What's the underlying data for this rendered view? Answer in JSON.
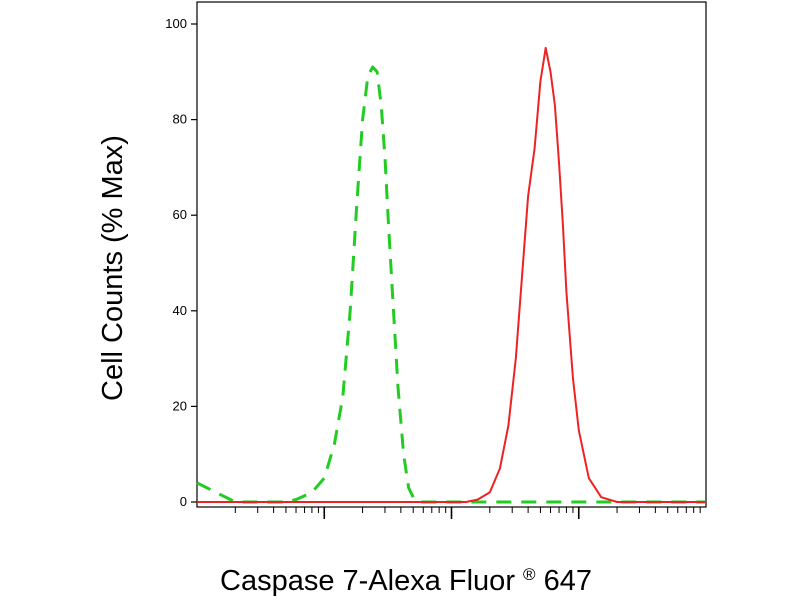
{
  "chart_data": {
    "type": "line",
    "title": "",
    "xlabel": "Caspase 7-Alexa Fluor",
    "xlabel_mark": "®",
    "xlabel_suffix": " 647",
    "ylabel": "Cell Counts (% Max)",
    "xscale": "log",
    "xlim": [
      1,
      10000
    ],
    "ylim": [
      0,
      100
    ],
    "yticks": [
      0,
      20,
      40,
      60,
      80,
      100
    ],
    "ytick_labels": [
      "0",
      "20",
      "40",
      "60",
      "80",
      "100"
    ],
    "x_major_ticks": [
      10,
      100,
      1000
    ],
    "x_tick_labels_visible": false,
    "grid": false,
    "legend": "none",
    "series": [
      {
        "color": "#22cc22",
        "style": "dashed",
        "x": [
          1,
          2,
          3,
          4,
          5,
          6,
          8,
          10,
          12,
          14,
          16,
          18,
          20,
          22,
          24,
          26,
          28,
          30,
          32,
          35,
          38,
          42,
          46,
          50,
          55,
          60,
          70,
          80,
          100,
          150,
          300,
          1000,
          10000
        ],
        "y": [
          4,
          0,
          0,
          0,
          0,
          0.5,
          2,
          5,
          12,
          22,
          40,
          62,
          80,
          89,
          91,
          90,
          83,
          72,
          58,
          40,
          24,
          10,
          3,
          1,
          0,
          0,
          0,
          0,
          0,
          0,
          0,
          0,
          0
        ]
      },
      {
        "color": "#ee2222",
        "style": "solid",
        "x": [
          1,
          50,
          70,
          100,
          130,
          160,
          200,
          240,
          280,
          320,
          360,
          400,
          450,
          500,
          550,
          600,
          650,
          700,
          750,
          800,
          900,
          1000,
          1200,
          1500,
          2000,
          3000,
          5000,
          10000
        ],
        "y": [
          0,
          0,
          0,
          0,
          0,
          0.5,
          2,
          7,
          16,
          30,
          48,
          64,
          74,
          88,
          95,
          90,
          83,
          71,
          58,
          44,
          26,
          15,
          5,
          1,
          0,
          0,
          0,
          0
        ]
      }
    ]
  }
}
